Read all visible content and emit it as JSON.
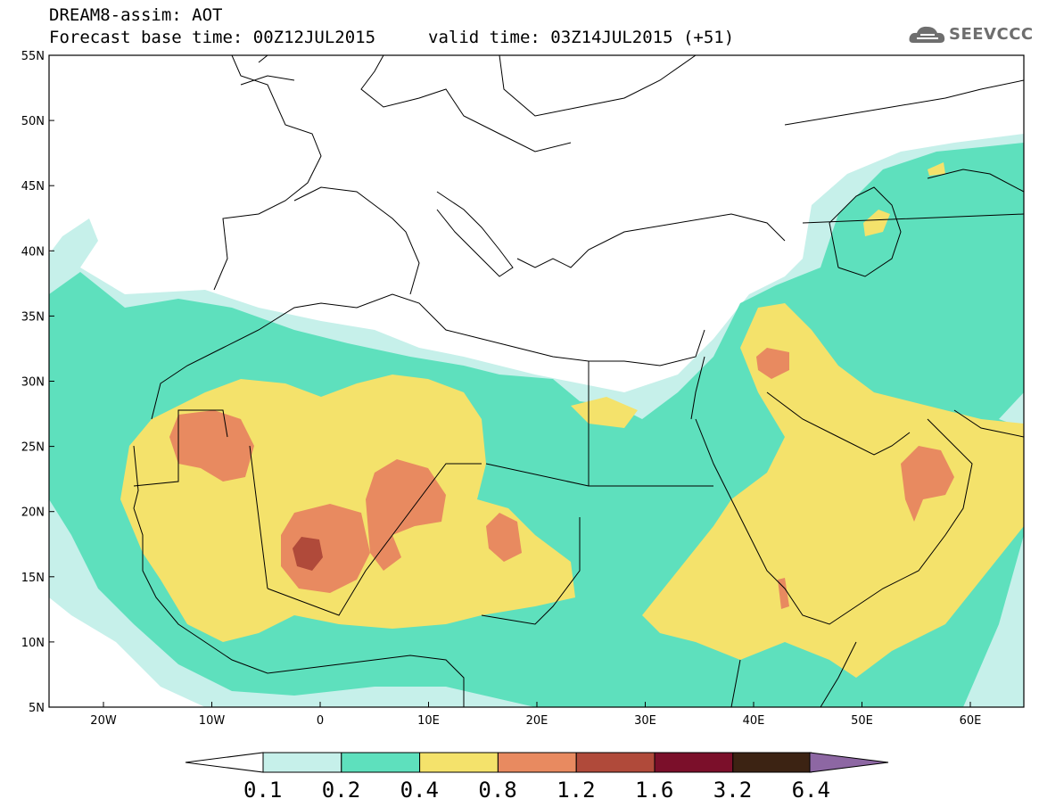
{
  "header": {
    "title": "DREAM8-assim: AOT",
    "base_time": "Forecast base time: 00Z12JUL2015",
    "valid_time": "valid time: 03Z14JUL2015 (+51)",
    "logo_text": "SEEVCCC"
  },
  "map": {
    "lat_labels": [
      "55N",
      "50N",
      "45N",
      "40N",
      "35N",
      "30N",
      "25N",
      "20N",
      "15N",
      "10N",
      "5N"
    ],
    "lon_labels": [
      "20W",
      "10W",
      "0",
      "10E",
      "20E",
      "30E",
      "40E",
      "50E",
      "60E"
    ]
  },
  "colorbar": {
    "labels": [
      "0.1",
      "0.2",
      "0.4",
      "0.8",
      "1.2",
      "1.6",
      "3.2",
      "6.4"
    ],
    "colors": [
      "#c6f0ea",
      "#5ee0bd",
      "#f4e26b",
      "#e88a60",
      "#b04a3a",
      "#7b0f2a",
      "#3c2313",
      "#8d67a3"
    ]
  },
  "palette": {
    "c01": "#c6f0ea",
    "c02": "#5ee0bd",
    "c04": "#f4e26b",
    "c08": "#e88a60",
    "c12": "#b04a3a"
  }
}
